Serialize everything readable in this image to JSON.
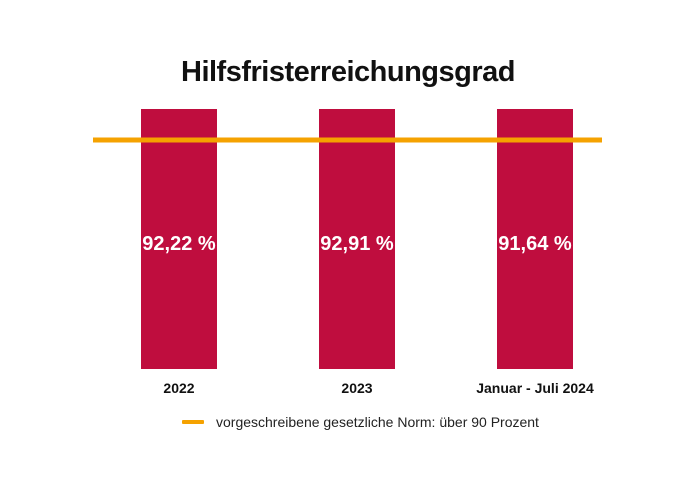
{
  "chart_data": {
    "type": "bar",
    "title": "Hilfsfristerreichungsgrad",
    "categories": [
      "2022",
      "2023",
      "Januar - Juli 2024"
    ],
    "values": [
      92.22,
      92.91,
      91.64
    ],
    "value_labels": [
      "92,22 %",
      "92,91 %",
      "91,64 %"
    ],
    "reference_line": {
      "value": 90,
      "label": "vorgeschreibene gesetzliche Norm: über 90 Prozent"
    },
    "grid": false,
    "legend_position": "bottom",
    "colors": {
      "bar": "#bf0d3e",
      "reference_line": "#f5a200"
    }
  }
}
